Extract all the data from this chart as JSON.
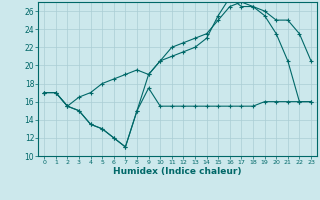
{
  "xlabel": "Humidex (Indice chaleur)",
  "bg_color": "#cce8ec",
  "grid_color": "#aacdd4",
  "line_color": "#006868",
  "xlim": [
    -0.5,
    23.5
  ],
  "ylim": [
    10,
    27
  ],
  "xticks": [
    0,
    1,
    2,
    3,
    4,
    5,
    6,
    7,
    8,
    9,
    10,
    11,
    12,
    13,
    14,
    15,
    16,
    17,
    18,
    19,
    20,
    21,
    22,
    23
  ],
  "yticks": [
    10,
    12,
    14,
    16,
    18,
    20,
    22,
    24,
    26
  ],
  "line1_x": [
    0,
    1,
    2,
    3,
    4,
    5,
    6,
    7,
    8,
    9,
    10,
    11,
    12,
    13,
    14,
    15,
    16,
    17,
    18,
    19,
    20,
    21,
    22,
    23
  ],
  "line1_y": [
    17,
    17,
    15.5,
    15,
    13.5,
    13,
    12,
    11,
    15,
    17.5,
    15.5,
    15.5,
    15.5,
    15.5,
    15.5,
    15.5,
    15.5,
    15.5,
    15.5,
    16,
    16,
    16,
    16,
    16
  ],
  "line2_x": [
    0,
    1,
    2,
    3,
    4,
    5,
    6,
    7,
    8,
    9,
    10,
    11,
    12,
    13,
    14,
    15,
    16,
    17,
    18,
    19,
    20,
    21,
    22,
    23
  ],
  "line2_y": [
    17,
    17,
    15.5,
    16.5,
    17,
    18,
    18.5,
    19,
    19.5,
    19,
    20.5,
    22,
    22.5,
    23,
    23.5,
    25,
    26.5,
    27,
    26.5,
    26,
    25,
    25,
    23.5,
    20.5
  ],
  "line3_x": [
    0,
    1,
    2,
    3,
    4,
    5,
    6,
    7,
    8,
    9,
    10,
    11,
    12,
    13,
    14,
    15,
    16,
    17,
    18,
    19,
    20,
    21,
    22,
    23
  ],
  "line3_y": [
    17,
    17,
    15.5,
    15,
    13.5,
    13,
    12,
    11,
    15,
    19,
    20.5,
    21,
    21.5,
    22,
    23,
    25.5,
    27.5,
    26.5,
    26.5,
    25.5,
    23.5,
    20.5,
    16,
    16
  ]
}
